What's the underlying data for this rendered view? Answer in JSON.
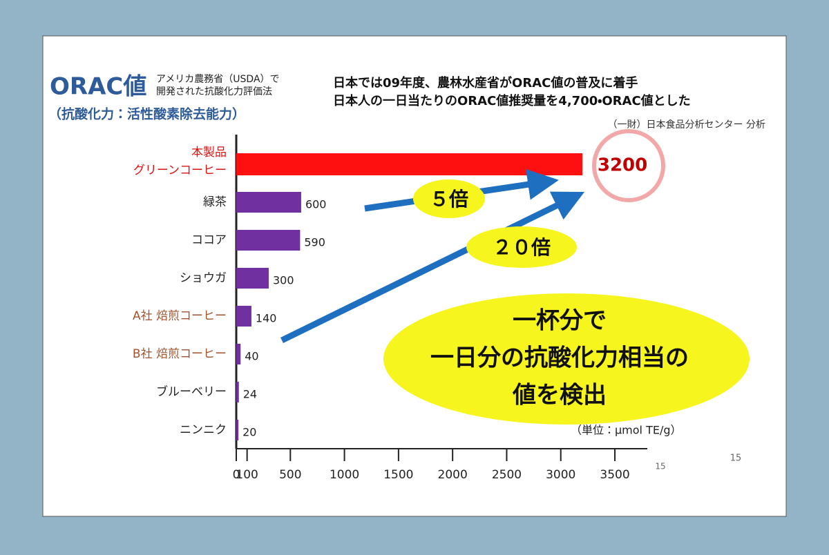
{
  "chart_data": {
    "type": "bar",
    "title": "ORAC値",
    "subtitle": "（抗酸化力：活性酸素除去能力）",
    "title_note": [
      "アメリカ農務省（USDA）で",
      "開発された抗酸化力評価法"
    ],
    "headline": [
      "日本では09年度、農林水産省がORAC値の普及に着手",
      "日本人の一日当たりのORAC値推奨量を4,700・ORAC値とした"
    ],
    "source": "（一財）日本食品分析センター 分析",
    "categories": [
      "本製品\nグリーンコーヒー",
      "緑茶",
      "ココア",
      "ショウガ",
      "A社 焙煎コーヒー",
      "B社 焙煎コーヒー",
      "ブルーベリー",
      "ニンニク"
    ],
    "values": [
      3200,
      600,
      590,
      300,
      140,
      40,
      24,
      20
    ],
    "colors": [
      "#ff1010",
      "#7030a0",
      "#7030a0",
      "#7030a0",
      "#7030a0",
      "#7030a0",
      "#7030a0",
      "#7030a0"
    ],
    "label_colors": [
      "#e01010",
      "#222222",
      "#222222",
      "#222222",
      "#a0522d",
      "#a0522d",
      "#222222",
      "#222222"
    ],
    "orientation": "horizontal",
    "xlim": [
      0,
      3800
    ],
    "xticks": [
      0,
      100,
      500,
      1000,
      1500,
      2000,
      2500,
      3000,
      3500
    ],
    "annotations": {
      "ratio_green_tea": "５倍",
      "ratio_coffee": "２０倍",
      "callout": [
        "一杯分で",
        "一日分の抗酸化力相当の",
        "値を検出"
      ],
      "unit": "（単位：µmol TE/g）"
    },
    "page_numbers": [
      "15",
      "15"
    ]
  }
}
